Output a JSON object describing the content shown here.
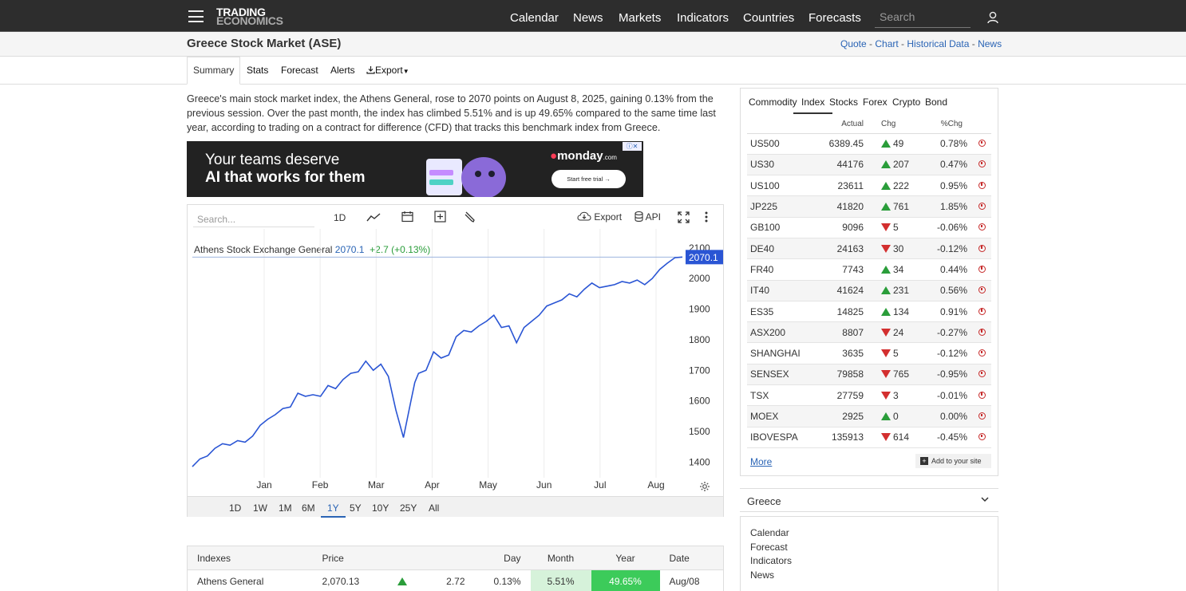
{
  "header": {
    "logo_line1": "TRADING",
    "logo_line2": "ECONOMICS",
    "nav": [
      "Calendar",
      "News",
      "Markets",
      "Indicators",
      "Countries",
      "Forecasts"
    ],
    "search_placeholder": "Search"
  },
  "page": {
    "title": "Greece Stock Market (ASE)",
    "quick_links": [
      "Quote",
      "Chart",
      "Historical Data",
      "News"
    ]
  },
  "tabs": {
    "summary": "Summary",
    "stats": "Stats",
    "forecast": "Forecast",
    "alerts": "Alerts",
    "export": "Export"
  },
  "description": "Greece's main stock market index, the Athens General, rose to 2070 points on August 8, 2025, gaining 0.13% from the previous session. Over the past month, the index has climbed 5.51% and is up 49.65% compared to the same time last year, according to trading on a contract for difference (CFD) that tracks this benchmark index from Greece.",
  "ad": {
    "line1": "Your teams deserve",
    "line2": "AI that works for them",
    "brand": "monday",
    "brand_suffix": ".com",
    "cta": "Start free trial →"
  },
  "chart_toolbar": {
    "search_placeholder": "Search...",
    "interval": "1D",
    "export": "Export",
    "api": "API"
  },
  "chart_legend": {
    "name": "Athens Stock Exchange General",
    "value": "2070.1",
    "change": "+2.7 (+0.13%)"
  },
  "chart_data": {
    "type": "line",
    "title": "",
    "xlabel": "",
    "ylabel": "",
    "x_ticks": [
      "Jan",
      "Feb",
      "Mar",
      "Apr",
      "May",
      "Jun",
      "Jul",
      "Aug"
    ],
    "y_ticks": [
      1400,
      1500,
      1600,
      1700,
      1800,
      1900,
      2000,
      2100
    ],
    "ylim": [
      1380,
      2110
    ],
    "last_value_label": "2070.1",
    "series": [
      {
        "name": "Athens Stock Exchange General",
        "color": "#2a55d4",
        "x": [
          0,
          4,
          8,
          12,
          16,
          20,
          24,
          28,
          32,
          36,
          40,
          44,
          48,
          52,
          56,
          60,
          64,
          68,
          72,
          76,
          80,
          84,
          88,
          92,
          96,
          100,
          104,
          108,
          112,
          114,
          116,
          118,
          120,
          124,
          128,
          132,
          136,
          140,
          144,
          148,
          152,
          156,
          160,
          164,
          168,
          172,
          176,
          180,
          184,
          188,
          192,
          196,
          200,
          204,
          208,
          212,
          216,
          220,
          224,
          228,
          232,
          236,
          240,
          244,
          248,
          252,
          256,
          260
        ],
        "values": [
          1385,
          1410,
          1420,
          1445,
          1460,
          1455,
          1470,
          1465,
          1485,
          1520,
          1540,
          1555,
          1575,
          1580,
          1625,
          1615,
          1620,
          1615,
          1650,
          1640,
          1670,
          1690,
          1695,
          1730,
          1700,
          1720,
          1680,
          1570,
          1480,
          1540,
          1600,
          1660,
          1690,
          1700,
          1760,
          1740,
          1750,
          1810,
          1830,
          1825,
          1845,
          1860,
          1880,
          1840,
          1845,
          1790,
          1840,
          1860,
          1880,
          1910,
          1920,
          1930,
          1950,
          1940,
          1965,
          1985,
          1970,
          1975,
          1980,
          1990,
          1985,
          1995,
          1980,
          2000,
          2030,
          2050,
          2068,
          2070
        ]
      }
    ]
  },
  "range_buttons": [
    "1D",
    "1W",
    "1M",
    "6M",
    "1Y",
    "5Y",
    "10Y",
    "25Y",
    "All"
  ],
  "indexes_table": {
    "headers": [
      "Indexes",
      "Price",
      "",
      "",
      "Day",
      "Month",
      "Year",
      "Date"
    ],
    "rows": [
      {
        "name": "Athens General",
        "price": "2,070.13",
        "change": "2.72",
        "day": "0.13%",
        "month": "5.51%",
        "year": "49.65%",
        "date": "Aug/08"
      }
    ]
  },
  "market_panel": {
    "tabs": [
      "Commodity",
      "Index",
      "Stocks",
      "Forex",
      "Crypto",
      "Bond"
    ],
    "headers": [
      "Actual",
      "Chg",
      "%Chg"
    ],
    "rows": [
      {
        "sym": "US500",
        "actual": "6389.45",
        "chg": "49",
        "pct": "0.78%",
        "dir": "up"
      },
      {
        "sym": "US30",
        "actual": "44176",
        "chg": "207",
        "pct": "0.47%",
        "dir": "up"
      },
      {
        "sym": "US100",
        "actual": "23611",
        "chg": "222",
        "pct": "0.95%",
        "dir": "up"
      },
      {
        "sym": "JP225",
        "actual": "41820",
        "chg": "761",
        "pct": "1.85%",
        "dir": "up"
      },
      {
        "sym": "GB100",
        "actual": "9096",
        "chg": "5",
        "pct": "-0.06%",
        "dir": "down"
      },
      {
        "sym": "DE40",
        "actual": "24163",
        "chg": "30",
        "pct": "-0.12%",
        "dir": "down"
      },
      {
        "sym": "FR40",
        "actual": "7743",
        "chg": "34",
        "pct": "0.44%",
        "dir": "up"
      },
      {
        "sym": "IT40",
        "actual": "41624",
        "chg": "231",
        "pct": "0.56%",
        "dir": "up"
      },
      {
        "sym": "ES35",
        "actual": "14825",
        "chg": "134",
        "pct": "0.91%",
        "dir": "up"
      },
      {
        "sym": "ASX200",
        "actual": "8807",
        "chg": "24",
        "pct": "-0.27%",
        "dir": "down"
      },
      {
        "sym": "SHANGHAI",
        "actual": "3635",
        "chg": "5",
        "pct": "-0.12%",
        "dir": "down"
      },
      {
        "sym": "SENSEX",
        "actual": "79858",
        "chg": "765",
        "pct": "-0.95%",
        "dir": "down"
      },
      {
        "sym": "TSX",
        "actual": "27759",
        "chg": "3",
        "pct": "-0.01%",
        "dir": "down"
      },
      {
        "sym": "MOEX",
        "actual": "2925",
        "chg": "0",
        "pct": "0.00%",
        "dir": "up"
      },
      {
        "sym": "IBOVESPA",
        "actual": "135913",
        "chg": "614",
        "pct": "-0.45%",
        "dir": "down"
      }
    ],
    "more": "More",
    "add_to_site": "Add to your site"
  },
  "country_box": {
    "title": "Greece",
    "links": [
      "Calendar",
      "Forecast",
      "Indicators",
      "News"
    ]
  },
  "colors": {
    "topbar": "#2d2d2d",
    "link": "#2a64b5",
    "up": "#2a9d3a",
    "down": "#c62828",
    "line": "#2a55d4",
    "year_cell": "#3ccb5a",
    "month_cell": "#d6f2da"
  }
}
